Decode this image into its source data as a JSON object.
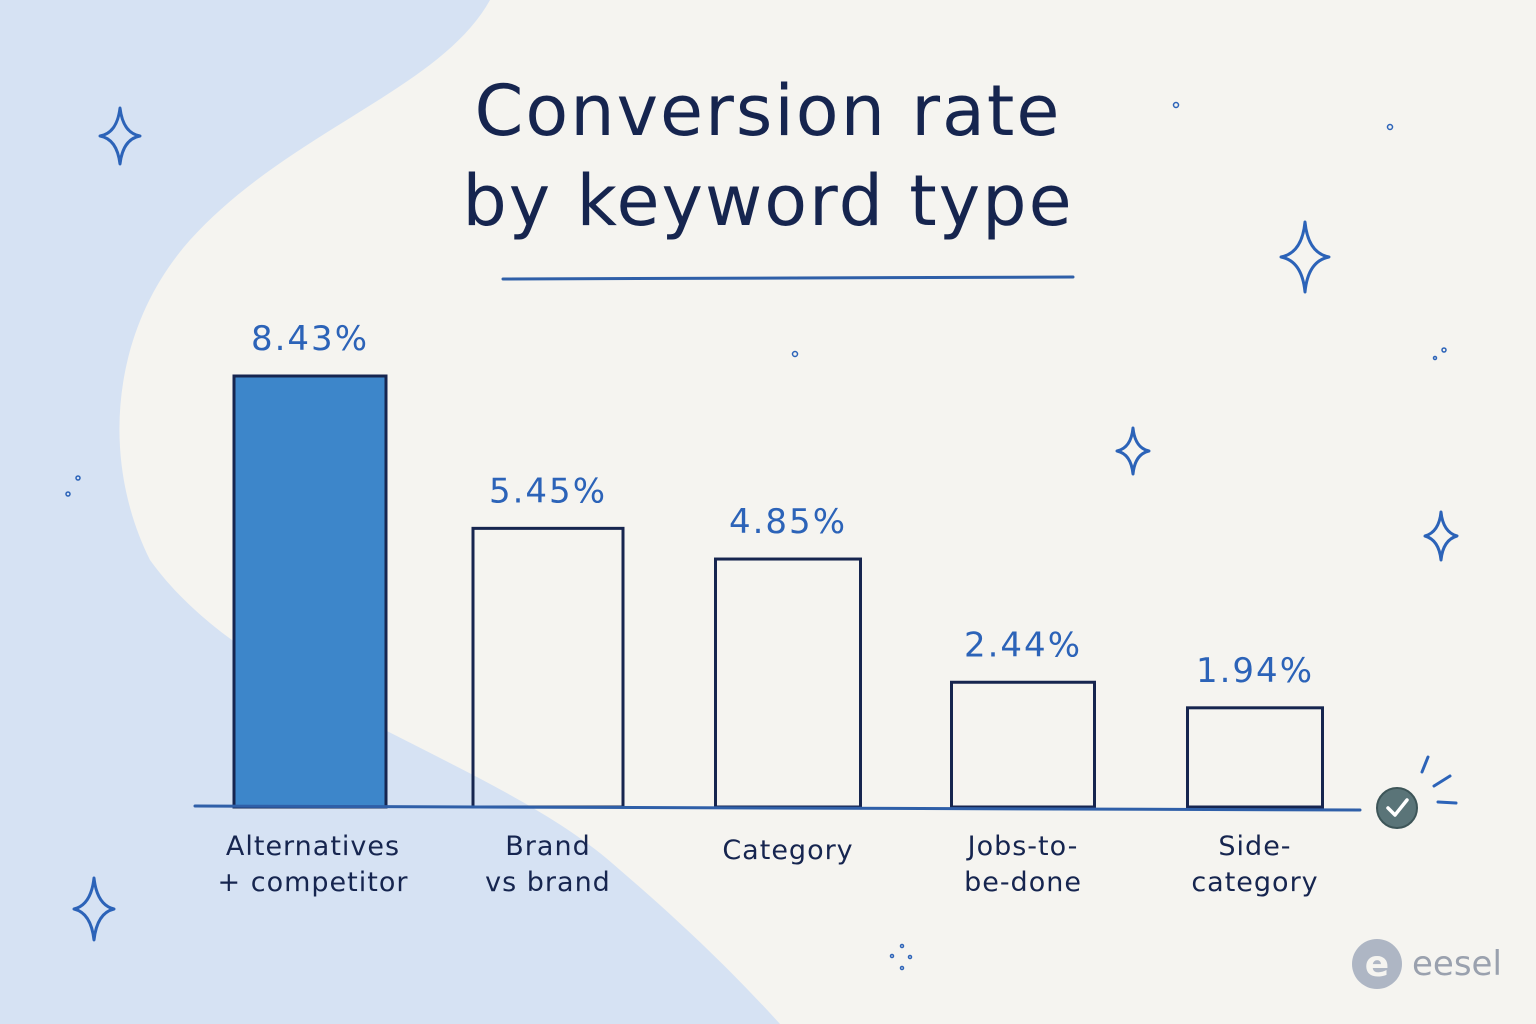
{
  "title": [
    "Conversion rate",
    "by keyword type"
  ],
  "brand": {
    "name": "eesel",
    "logo_letter": "e"
  },
  "colors": {
    "background": "#f5f4f0",
    "blob": "#d6e2f3",
    "highlight_bar": "#3d86ca",
    "outline": "#16254f",
    "value_label": "#2c63b8",
    "axis": "#2f5fa8",
    "check_badge": "#5a7478"
  },
  "chart_data": {
    "type": "bar",
    "title": "Conversion rate by keyword type",
    "categories": [
      [
        "Alternatives",
        "+ competitor"
      ],
      [
        "Brand",
        "vs brand"
      ],
      [
        "Category"
      ],
      [
        "Jobs-to-",
        "be-done"
      ],
      [
        "Side-",
        "category"
      ]
    ],
    "values": [
      8.43,
      5.45,
      4.85,
      2.44,
      1.94
    ],
    "value_labels": [
      "8.43%",
      "5.45%",
      "4.85%",
      "2.44%",
      "1.94%"
    ],
    "highlighted_index": 0,
    "ylim": [
      0,
      8.43
    ],
    "grid": false,
    "legend": "none"
  }
}
